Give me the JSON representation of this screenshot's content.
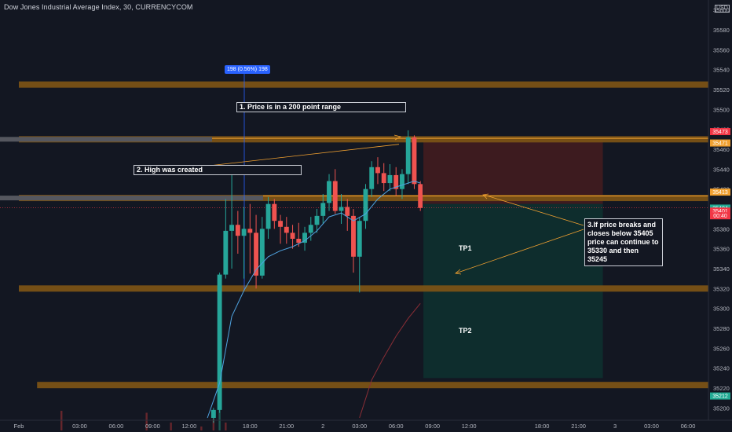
{
  "header": {
    "title": "Dow Jones Industrial Average Index, 30, CURRENCYCOM",
    "currency": "USD"
  },
  "chart_data": {
    "type": "candlestick",
    "y_axis": {
      "range": [
        35190,
        35610
      ],
      "ticks": [
        35200,
        35220,
        35240,
        35260,
        35280,
        35300,
        35320,
        35340,
        35360,
        35380,
        35400,
        35420,
        35440,
        35460,
        35480,
        35500,
        35520,
        35540,
        35560,
        35580,
        35600
      ],
      "tick_labels": [
        "35200",
        "35220",
        "35240",
        "35260",
        "35280",
        "35300",
        "35320",
        "35340",
        "35360",
        "35380",
        "35400",
        "35420",
        "35440",
        "35460",
        "35480",
        "35500",
        "35520",
        "35540",
        "35560",
        "35580",
        "35600"
      ]
    },
    "x_axis": {
      "range": [
        -33,
        125
      ],
      "ticks": [
        {
          "x": -33,
          "label": "Feb"
        },
        {
          "x": -23,
          "label": "03:00"
        },
        {
          "x": -17,
          "label": "06:00"
        },
        {
          "x": -11,
          "label": "09:00"
        },
        {
          "x": -5,
          "label": "12:00"
        },
        {
          "x": 5,
          "label": "18:00"
        },
        {
          "x": 11,
          "label": "21:00"
        },
        {
          "x": 17,
          "label": "2"
        },
        {
          "x": 23,
          "label": "03:00"
        },
        {
          "x": 29,
          "label": "06:00"
        },
        {
          "x": 35,
          "label": "09:00"
        },
        {
          "x": 41,
          "label": "12:00"
        },
        {
          "x": 53,
          "label": "18:00"
        },
        {
          "x": 59,
          "label": "21:00"
        },
        {
          "x": 65,
          "label": "3"
        },
        {
          "x": 71,
          "label": "03:00"
        },
        {
          "x": 77,
          "label": "06:00"
        }
      ]
    },
    "candles": [
      {
        "x": -1,
        "o": 35190,
        "h": 35200,
        "l": 35185,
        "c": 35198
      },
      {
        "x": 0,
        "o": 35198,
        "h": 35336,
        "l": 35195,
        "c": 35334
      },
      {
        "x": 1,
        "o": 35334,
        "h": 35410,
        "l": 35330,
        "c": 35378
      },
      {
        "x": 2,
        "o": 35378,
        "h": 35440,
        "l": 35340,
        "c": 35384
      },
      {
        "x": 3,
        "o": 35384,
        "h": 35398,
        "l": 35355,
        "c": 35373
      },
      {
        "x": 4,
        "o": 35373,
        "h": 35402,
        "l": 35330,
        "c": 35380
      },
      {
        "x": 5,
        "o": 35380,
        "h": 35405,
        "l": 35335,
        "c": 35376
      },
      {
        "x": 6,
        "o": 35376,
        "h": 35394,
        "l": 35320,
        "c": 35333
      },
      {
        "x": 7,
        "o": 35333,
        "h": 35392,
        "l": 35330,
        "c": 35380
      },
      {
        "x": 8,
        "o": 35380,
        "h": 35412,
        "l": 35370,
        "c": 35405
      },
      {
        "x": 9,
        "o": 35405,
        "h": 35410,
        "l": 35380,
        "c": 35388
      },
      {
        "x": 10,
        "o": 35388,
        "h": 35394,
        "l": 35365,
        "c": 35382
      },
      {
        "x": 11,
        "o": 35382,
        "h": 35392,
        "l": 35365,
        "c": 35376
      },
      {
        "x": 12,
        "o": 35376,
        "h": 35384,
        "l": 35360,
        "c": 35370
      },
      {
        "x": 13,
        "o": 35370,
        "h": 35386,
        "l": 35362,
        "c": 35366
      },
      {
        "x": 14,
        "o": 35366,
        "h": 35382,
        "l": 35358,
        "c": 35376
      },
      {
        "x": 15,
        "o": 35376,
        "h": 35392,
        "l": 35368,
        "c": 35384
      },
      {
        "x": 16,
        "o": 35384,
        "h": 35400,
        "l": 35376,
        "c": 35393
      },
      {
        "x": 17,
        "o": 35393,
        "h": 35415,
        "l": 35385,
        "c": 35406
      },
      {
        "x": 18,
        "o": 35406,
        "h": 35435,
        "l": 35398,
        "c": 35428
      },
      {
        "x": 19,
        "o": 35428,
        "h": 35440,
        "l": 35395,
        "c": 35398
      },
      {
        "x": 20,
        "o": 35398,
        "h": 35415,
        "l": 35385,
        "c": 35402
      },
      {
        "x": 21,
        "o": 35402,
        "h": 35410,
        "l": 35378,
        "c": 35393
      },
      {
        "x": 22,
        "o": 35393,
        "h": 35400,
        "l": 35336,
        "c": 35352
      },
      {
        "x": 23,
        "o": 35352,
        "h": 35392,
        "l": 35316,
        "c": 35388
      },
      {
        "x": 24,
        "o": 35388,
        "h": 35425,
        "l": 35380,
        "c": 35420
      },
      {
        "x": 25,
        "o": 35420,
        "h": 35448,
        "l": 35412,
        "c": 35442
      },
      {
        "x": 26,
        "o": 35442,
        "h": 35452,
        "l": 35425,
        "c": 35436
      },
      {
        "x": 27,
        "o": 35436,
        "h": 35446,
        "l": 35418,
        "c": 35426
      },
      {
        "x": 28,
        "o": 35426,
        "h": 35445,
        "l": 35418,
        "c": 35434
      },
      {
        "x": 29,
        "o": 35434,
        "h": 35442,
        "l": 35413,
        "c": 35420
      },
      {
        "x": 30,
        "o": 35420,
        "h": 35440,
        "l": 35410,
        "c": 35435
      },
      {
        "x": 31,
        "o": 35435,
        "h": 35479,
        "l": 35425,
        "c": 35472
      },
      {
        "x": 32,
        "o": 35472,
        "h": 35474,
        "l": 35420,
        "c": 35425
      },
      {
        "x": 33,
        "o": 35425,
        "h": 35428,
        "l": 35398,
        "c": 35401
      }
    ],
    "ema_fast": [
      [
        -2,
        35190
      ],
      [
        0,
        35225
      ],
      [
        2,
        35292
      ],
      [
        4,
        35318
      ],
      [
        6,
        35339
      ],
      [
        8,
        35352
      ],
      [
        10,
        35358
      ],
      [
        12,
        35362
      ],
      [
        14,
        35368
      ],
      [
        16,
        35378
      ],
      [
        18,
        35392
      ],
      [
        20,
        35396
      ],
      [
        22,
        35388
      ],
      [
        24,
        35395
      ],
      [
        26,
        35410
      ],
      [
        28,
        35420
      ],
      [
        30,
        35424
      ],
      [
        32,
        35428
      ],
      [
        33,
        35426
      ]
    ],
    "sma_slow": [
      [
        23,
        35190
      ],
      [
        25,
        35228
      ],
      [
        27,
        35251
      ],
      [
        29,
        35272
      ],
      [
        31,
        35290
      ],
      [
        33,
        35305
      ]
    ],
    "levels": [
      {
        "price": 35525,
        "x_from": -33,
        "x_to": 125,
        "kind": "zone"
      },
      {
        "price": 35470,
        "x_from": -33,
        "x_to": 125,
        "kind": "zone"
      },
      {
        "price": 35411,
        "x_from": -33,
        "x_to": 125,
        "kind": "zone"
      },
      {
        "price": 35320,
        "x_from": -33,
        "x_to": 125,
        "kind": "zone"
      },
      {
        "price": 35223,
        "x_from": -30,
        "x_to": 125,
        "kind": "zone"
      }
    ],
    "short_position": {
      "x_from": 33.5,
      "x_to": 63,
      "entry": 35405,
      "stop": 35470,
      "tp": 35230
    },
    "price_labels": [
      {
        "price": 35473,
        "label": "35473",
        "color": "#f23645"
      },
      {
        "price": 35471,
        "label": "35471",
        "color": "#f0a030"
      },
      {
        "price": 35413,
        "label": "35413",
        "color": "#f0a030"
      },
      {
        "price": 35404,
        "label": "35404",
        "color": "#22ab94"
      },
      {
        "price": 35401,
        "label": "35401",
        "color": "#f23645"
      },
      {
        "price": 35396,
        "label": "00:40",
        "color": "#f23645"
      },
      {
        "price": 35212,
        "label": "35212",
        "color": "#22ab94"
      }
    ],
    "volume": [
      {
        "x": -26,
        "v": 1
      },
      {
        "x": -12,
        "v": 0.9
      },
      {
        "x": -8,
        "v": 0.4
      },
      {
        "x": -3,
        "v": 0.2
      },
      {
        "x": -1,
        "v": 0.6
      },
      {
        "x": 0,
        "v": 1.3
      },
      {
        "x": 1,
        "v": 0.4
      }
    ],
    "measure_label": "198 (0.56%) 198",
    "annotations": {
      "note1": "1. Price is in a 200 point range",
      "note2": "2. High was created",
      "note3": "3.If price breaks and closes below 35405 price can continue to 35330 and then 35245",
      "tp1": "TP1",
      "tp2": "TP2"
    }
  }
}
